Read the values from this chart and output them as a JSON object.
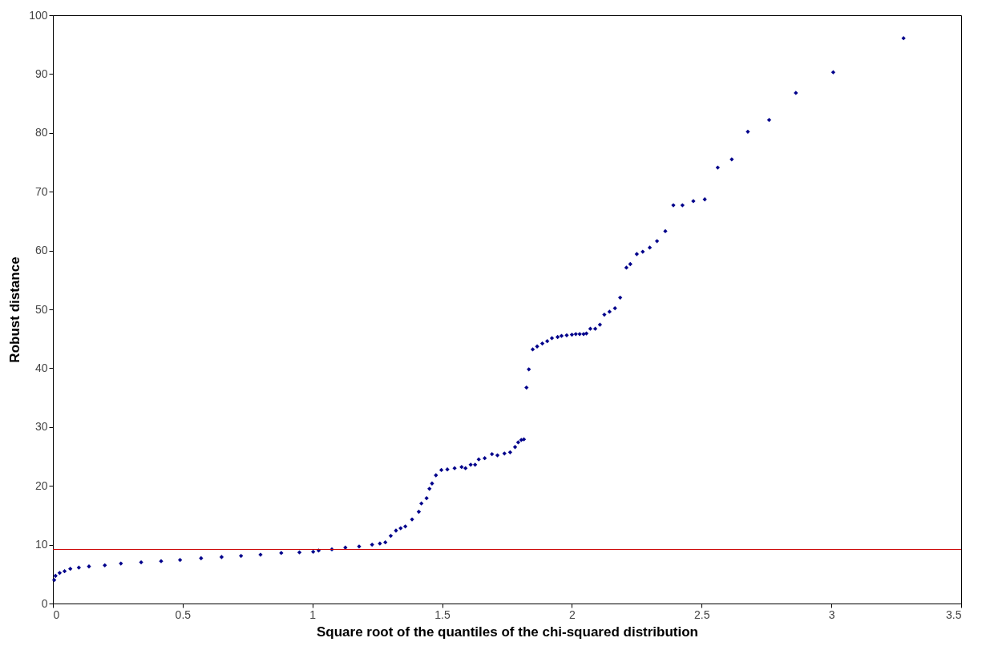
{
  "chart_data": {
    "type": "scatter",
    "xlabel": "Square root of the quantiles of the chi-squared distribution",
    "ylabel": "Robust distance",
    "x": [
      0.005,
      0.01,
      0.026,
      0.045,
      0.067,
      0.1,
      0.139,
      0.2,
      0.262,
      0.34,
      0.417,
      0.49,
      0.571,
      0.65,
      0.725,
      0.8,
      0.88,
      0.95,
      1.003,
      1.024,
      1.075,
      1.127,
      1.18,
      1.23,
      1.26,
      1.281,
      1.302,
      1.322,
      1.34,
      1.358,
      1.384,
      1.41,
      1.42,
      1.44,
      1.451,
      1.461,
      1.476,
      1.497,
      1.52,
      1.548,
      1.575,
      1.59,
      1.61,
      1.627,
      1.641,
      1.664,
      1.692,
      1.713,
      1.74,
      1.762,
      1.781,
      1.793,
      1.805,
      1.815,
      1.825,
      1.834,
      1.849,
      1.866,
      1.886,
      1.905,
      1.923,
      1.945,
      1.96,
      1.98,
      2.0,
      2.015,
      2.03,
      2.045,
      2.056,
      2.071,
      2.09,
      2.108,
      2.125,
      2.145,
      2.166,
      2.186,
      2.21,
      2.225,
      2.25,
      2.273,
      2.3,
      2.328,
      2.36,
      2.391,
      2.426,
      2.468,
      2.512,
      2.562,
      2.616,
      2.678,
      2.76,
      2.863,
      3.007,
      3.278
    ],
    "values": [
      4.0,
      4.7,
      5.2,
      5.5,
      5.9,
      6.1,
      6.3,
      6.5,
      6.8,
      7.0,
      7.2,
      7.4,
      7.7,
      7.9,
      8.1,
      8.3,
      8.6,
      8.7,
      8.8,
      9.0,
      9.2,
      9.5,
      9.7,
      10.0,
      10.2,
      10.4,
      11.5,
      12.4,
      12.8,
      13.1,
      14.3,
      15.6,
      17.0,
      17.9,
      19.5,
      20.4,
      21.8,
      22.7,
      22.8,
      23.0,
      23.2,
      23.0,
      23.6,
      23.6,
      24.5,
      24.7,
      25.4,
      25.2,
      25.5,
      25.7,
      26.6,
      27.4,
      27.8,
      27.9,
      36.7,
      39.8,
      43.2,
      43.7,
      44.2,
      44.6,
      45.1,
      45.3,
      45.5,
      45.6,
      45.7,
      45.8,
      45.8,
      45.8,
      45.9,
      46.7,
      46.7,
      47.4,
      49.1,
      49.6,
      50.2,
      52.0,
      57.1,
      57.7,
      59.4,
      59.8,
      60.5,
      61.6,
      63.3,
      67.7,
      67.7,
      68.4,
      68.7,
      74.1,
      75.5,
      80.2,
      82.2,
      86.8,
      90.3,
      96.1
    ],
    "color": "#00008b",
    "marker": "diamond",
    "xlim": [
      0,
      3.5
    ],
    "xticks": [
      0,
      0.5,
      1,
      1.5,
      2,
      2.5,
      3,
      3.5
    ],
    "ylim": [
      0,
      100
    ],
    "yticks": [
      0,
      10,
      20,
      30,
      40,
      50,
      60,
      70,
      80,
      90,
      100
    ],
    "grid": false,
    "ref_lines": [
      {
        "axis": "y",
        "value": 9.2,
        "color": "#cc0000"
      }
    ]
  }
}
